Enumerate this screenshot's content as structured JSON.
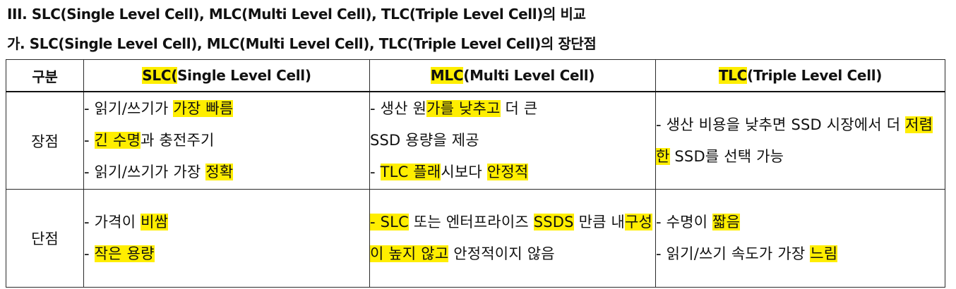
{
  "headings": {
    "section_title": "III. SLC(Single Level Cell), MLC(Multi Level Cell), TLC(Triple Level Cell)의 비교",
    "subsection_title": "가. SLC(Single Level Cell), MLC(Multi Level Cell), TLC(Triple Level Cell)의 장단점"
  },
  "table": {
    "header": {
      "category": "구분",
      "slc": {
        "hl": "SLC(",
        "rest": "Single Level Cell)"
      },
      "mlc": {
        "hl": "MLC",
        "rest": "(Multi Level Cell)"
      },
      "tlc": {
        "hl": "TLC",
        "rest": "(Triple Level Cell)"
      }
    },
    "rows": {
      "advantages": {
        "label": "장점",
        "slc": {
          "l1": {
            "a": "- 읽기/쓰기가 ",
            "hl": "가장 빠름"
          },
          "l2": {
            "a": "- ",
            "hl": "긴 수명",
            "b": "과 충전주기"
          },
          "l3": {
            "a": "- 읽기/쓰기가 가장 ",
            "hl": "정확"
          }
        },
        "mlc": {
          "l1": {
            "a": "- 생산 원",
            "hl": "가를 낮추고",
            "b": " 더 큰"
          },
          "l2": {
            "a": "SSD 용량을 제공"
          },
          "l3": {
            "a": "- ",
            "hl1": "TLC 플래",
            "b": "시보다 ",
            "hl2": "안정적"
          }
        },
        "tlc": {
          "a": "- 생산 비용을 낮추면 SSD 시장에서 더 ",
          "hl": "저렴한",
          "b": " SSD를 선택 가능"
        }
      },
      "disadvantages": {
        "label": "단점",
        "slc": {
          "l1": {
            "a": "- 가격이 ",
            "hl": "비쌈"
          },
          "l2": {
            "a": "- ",
            "hl": "작은 용량"
          }
        },
        "mlc": {
          "hl1": "- SLC",
          "a": " 또는 엔터프라이즈 ",
          "hl2": "SSDS",
          "b": " 만큼 내",
          "hl3": "구성이 높지 않고",
          "c": " 안정적이지 않음"
        },
        "tlc": {
          "l1": {
            "a": "- 수명이 ",
            "hl": "짧음"
          },
          "l2": {
            "a": "- 읽기/쓰기 속도가 가장 ",
            "hl": "느림"
          }
        }
      }
    }
  },
  "colors": {
    "highlight": "#ffee00",
    "text": "#111111",
    "border": "#2a2a2a"
  }
}
